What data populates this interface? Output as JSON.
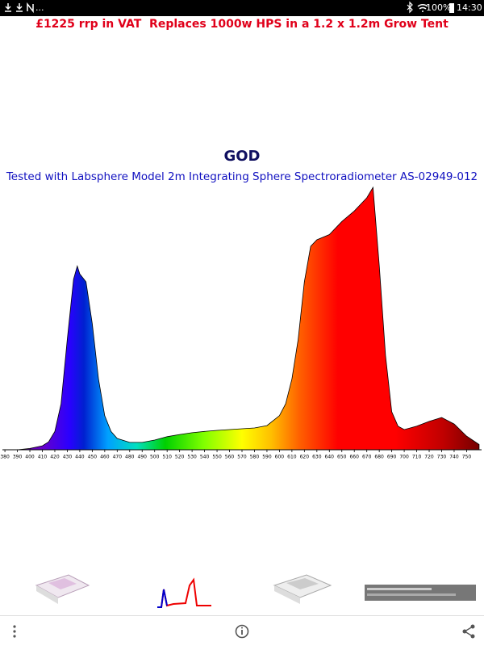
{
  "status_bar": {
    "more": "...",
    "battery": "100%",
    "time": "14:30"
  },
  "header": {
    "text": "£1225 rrp in VAT  Replaces 1000w HPS in a 1.2 x 1.2m Grow Tent"
  },
  "chart_data": {
    "type": "area",
    "title": "GOD",
    "subtitle": "Tested with Labsphere Model 2m Integrating Sphere Spectroradiometer AS-02949-012",
    "x": [
      380,
      390,
      400,
      410,
      415,
      420,
      425,
      430,
      435,
      438,
      440,
      445,
      450,
      455,
      460,
      465,
      470,
      480,
      490,
      500,
      510,
      520,
      530,
      540,
      550,
      560,
      570,
      580,
      590,
      600,
      605,
      610,
      615,
      620,
      625,
      630,
      640,
      650,
      660,
      670,
      675,
      680,
      685,
      690,
      695,
      700,
      710,
      720,
      730,
      740,
      750,
      760
    ],
    "values": [
      0,
      0,
      0.5,
      1.5,
      3,
      7,
      17.5,
      42,
      65,
      70,
      67,
      64,
      48,
      27,
      13,
      7,
      4.3,
      2.8,
      2.8,
      3.7,
      5,
      5.8,
      6.5,
      7,
      7.4,
      7.7,
      8,
      8.3,
      9.2,
      13,
      17.5,
      27,
      42,
      64,
      77.5,
      80,
      82,
      87,
      91,
      96,
      100,
      70,
      36,
      14.5,
      9,
      7.7,
      9,
      10.8,
      12.3,
      9.8,
      5.2,
      2
    ],
    "xlim": [
      378,
      762
    ],
    "xticks": [
      380,
      390,
      400,
      410,
      420,
      430,
      440,
      450,
      460,
      470,
      480,
      490,
      500,
      510,
      520,
      530,
      540,
      550,
      560,
      570,
      580,
      590,
      600,
      610,
      620,
      630,
      640,
      650,
      660,
      670,
      680,
      690,
      700,
      710,
      720,
      730,
      740,
      750
    ],
    "ylim": [
      0,
      100
    ]
  }
}
